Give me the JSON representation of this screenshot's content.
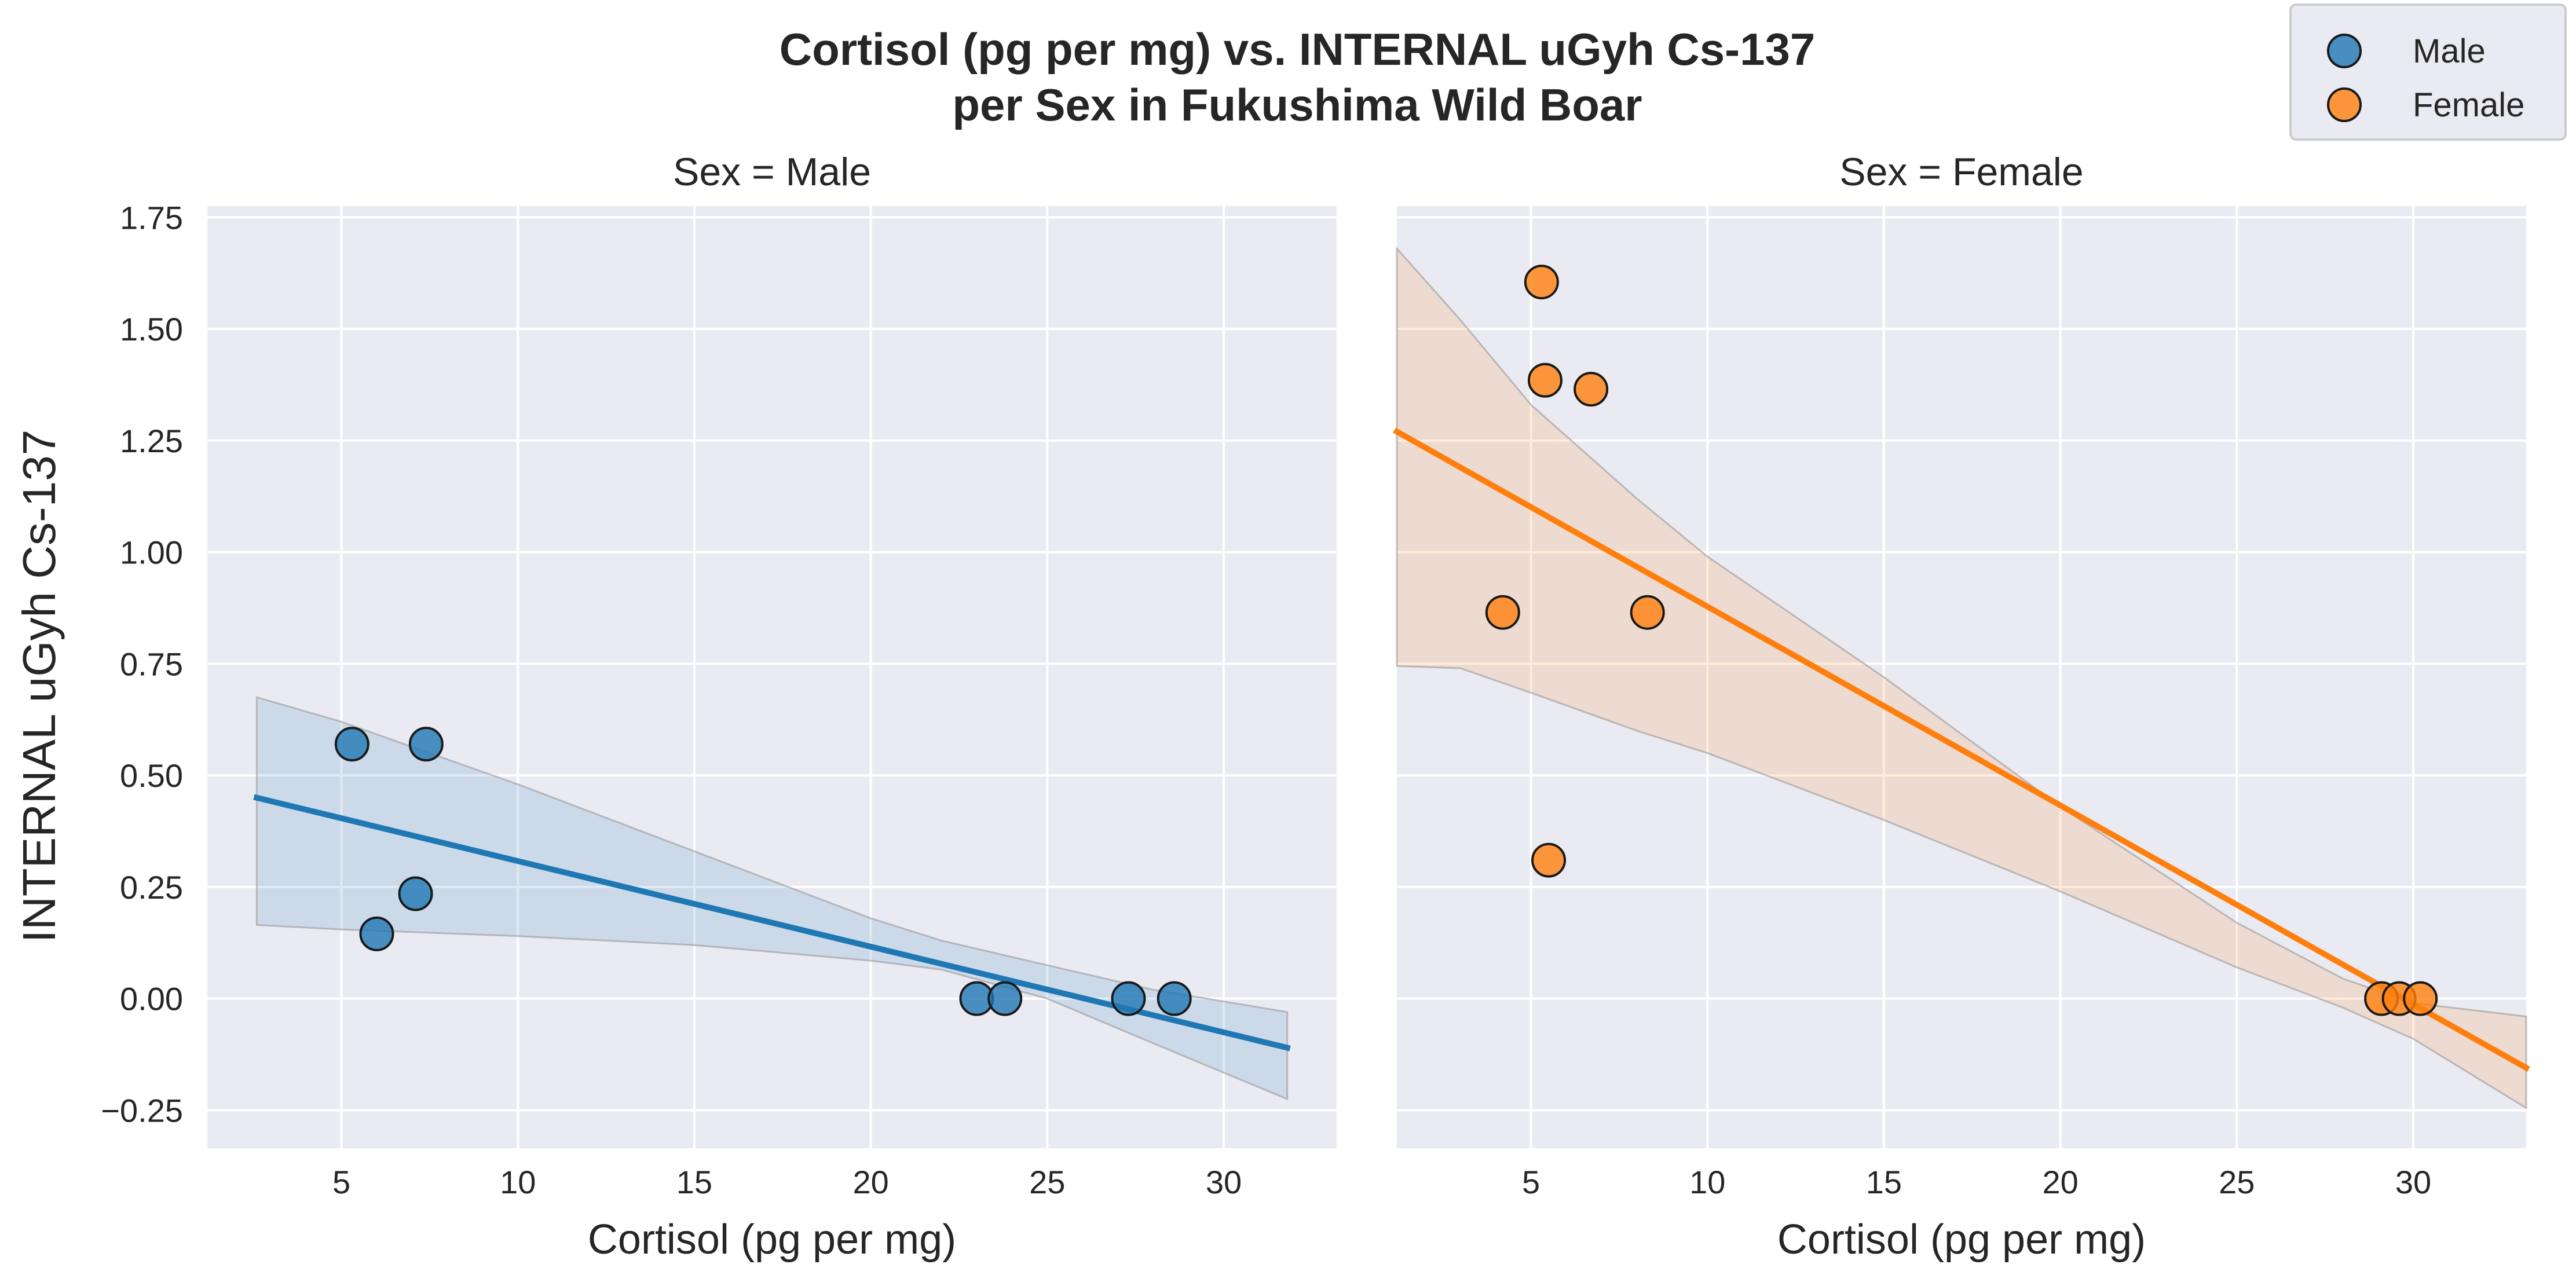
{
  "title": "Cortisol (pg per mg) vs. INTERNAL uGyh Cs-137",
  "title_line2": "per Sex in Fukushima Wild Boar",
  "ylabel": "INTERNAL uGyh Cs-137",
  "legend": {
    "placement": "top-right",
    "items": [
      {
        "label": "Male",
        "color": "#1f77b4"
      },
      {
        "label": "Female",
        "color": "#ff7f0e"
      }
    ]
  },
  "chart_data": [
    {
      "type": "scatter",
      "title": "Sex = Male",
      "xlabel": "Cortisol (pg per mg)",
      "ylabel": "INTERNAL uGyh Cs-137",
      "xlim": [
        1.2,
        33.2
      ],
      "ylim": [
        -0.335,
        1.775
      ],
      "xticks": [
        5,
        10,
        15,
        20,
        25,
        30
      ],
      "yticks": [
        -0.25,
        0.0,
        0.25,
        0.5,
        0.75,
        1.0,
        1.25,
        1.5,
        1.75
      ],
      "ytick_labels": [
        "−0.25",
        "0.00",
        "0.25",
        "0.50",
        "0.75",
        "1.00",
        "1.25",
        "1.50",
        "1.75"
      ],
      "grid": true,
      "color": "#1f77b4",
      "points": [
        {
          "x": 5.3,
          "y": 0.57
        },
        {
          "x": 7.4,
          "y": 0.57
        },
        {
          "x": 7.1,
          "y": 0.235
        },
        {
          "x": 6.0,
          "y": 0.145
        },
        {
          "x": 23.0,
          "y": 0.0
        },
        {
          "x": 23.8,
          "y": 0.0
        },
        {
          "x": 27.3,
          "y": 0.0
        },
        {
          "x": 28.6,
          "y": 0.0
        }
      ],
      "regression": {
        "x": [
          2.6,
          31.8
        ],
        "y": [
          0.45,
          -0.11
        ]
      },
      "ci_band": {
        "x": [
          2.6,
          5.0,
          10.0,
          15.0,
          20.0,
          22.0,
          25.0,
          28.0,
          31.8
        ],
        "lower": [
          0.165,
          0.155,
          0.14,
          0.12,
          0.085,
          0.065,
          0.0,
          -0.1,
          -0.225
        ],
        "upper": [
          0.675,
          0.62,
          0.48,
          0.33,
          0.18,
          0.13,
          0.075,
          0.02,
          -0.03
        ]
      }
    },
    {
      "type": "scatter",
      "title": "Sex = Female",
      "xlabel": "Cortisol (pg per mg)",
      "ylabel": "",
      "xlim": [
        1.2,
        33.2
      ],
      "ylim": [
        -0.335,
        1.775
      ],
      "xticks": [
        5,
        10,
        15,
        20,
        25,
        30
      ],
      "yticks": [
        -0.25,
        0.0,
        0.25,
        0.5,
        0.75,
        1.0,
        1.25,
        1.5,
        1.75
      ],
      "grid": true,
      "color": "#ff7f0e",
      "points": [
        {
          "x": 5.3,
          "y": 1.605
        },
        {
          "x": 5.4,
          "y": 1.385
        },
        {
          "x": 6.7,
          "y": 1.365
        },
        {
          "x": 4.2,
          "y": 0.865
        },
        {
          "x": 8.3,
          "y": 0.865
        },
        {
          "x": 5.5,
          "y": 0.31
        },
        {
          "x": 29.1,
          "y": 0.0
        },
        {
          "x": 29.6,
          "y": 0.0
        },
        {
          "x": 30.2,
          "y": 0.0
        }
      ],
      "regression": {
        "x": [
          1.2,
          33.2
        ],
        "y": [
          1.27,
          -0.155
        ]
      },
      "ci_band": {
        "x": [
          1.2,
          3.0,
          5.0,
          8.0,
          10.0,
          15.0,
          20.0,
          25.0,
          28.0,
          30.0,
          33.2
        ],
        "lower": [
          0.745,
          0.74,
          0.685,
          0.6,
          0.55,
          0.4,
          0.24,
          0.07,
          -0.02,
          -0.09,
          -0.245
        ],
        "upper": [
          1.68,
          1.52,
          1.33,
          1.12,
          0.99,
          0.72,
          0.43,
          0.17,
          0.045,
          -0.01,
          -0.04
        ]
      }
    }
  ]
}
